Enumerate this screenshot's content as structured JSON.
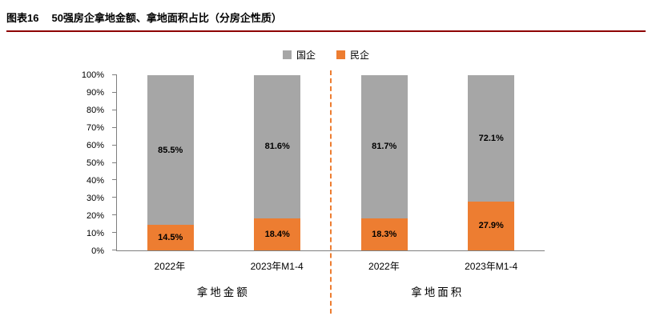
{
  "header": {
    "figure_label": "图表16",
    "title": "50强房企拿地金额、拿地面积占比（分房企性质）"
  },
  "chart_data": {
    "type": "bar",
    "stacked": true,
    "title": "50强房企拿地金额、拿地面积占比（分房企性质）",
    "categories": [
      "2022年",
      "2023年M1-4",
      "2022年",
      "2023年M1-4"
    ],
    "series": [
      {
        "name": "国企",
        "color": "#a6a6a6",
        "values": [
          85.5,
          81.6,
          81.7,
          72.1
        ]
      },
      {
        "name": "民企",
        "color": "#ed7d31",
        "values": [
          14.5,
          18.4,
          18.3,
          27.9
        ]
      }
    ],
    "group_labels": [
      "拿地金额",
      "拿地面积"
    ],
    "ylim": [
      0,
      100
    ],
    "ytick_step": 10,
    "yticklabels": [
      "0%",
      "10%",
      "20%",
      "30%",
      "40%",
      "50%",
      "60%",
      "70%",
      "80%",
      "90%",
      "100%"
    ],
    "legend_position": "top",
    "grid": false,
    "separator": {
      "style": "dashed",
      "color": "#ed7d31",
      "position": "between-groups"
    }
  },
  "colors": {
    "header_rule": "#8e0000",
    "axis_line": "#7f7f7f",
    "data_label_text": "#000000"
  }
}
